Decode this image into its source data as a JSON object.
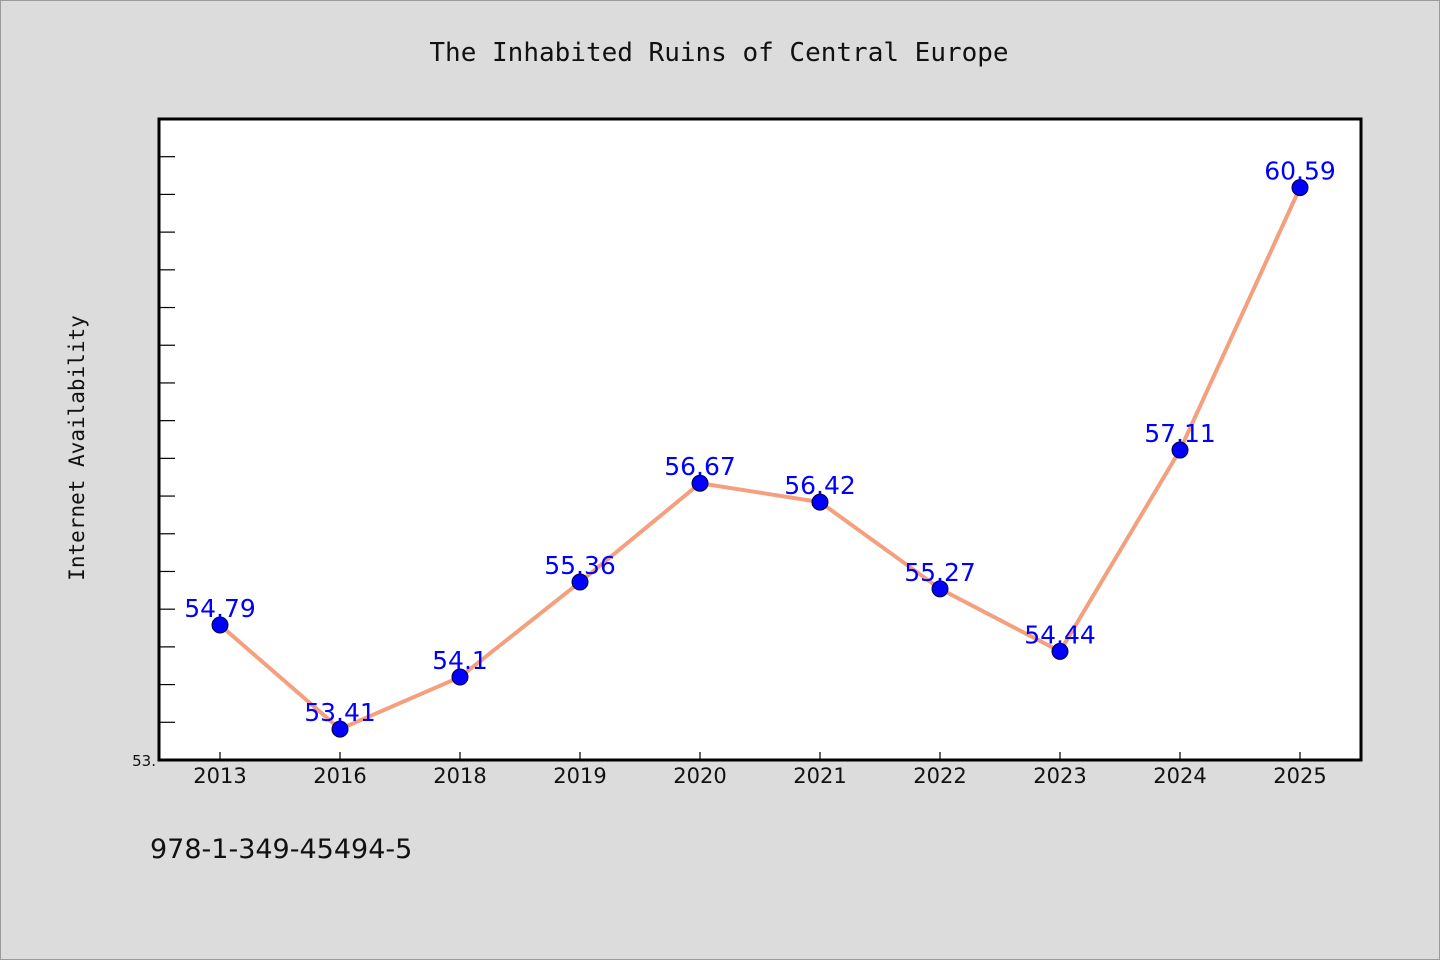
{
  "chart_data": {
    "type": "line",
    "title": "The Inhabited Ruins of Central Europe",
    "ylabel": "Internet Availability",
    "xlabel": "",
    "categories": [
      "2013",
      "2016",
      "2018",
      "2019",
      "2020",
      "2021",
      "2022",
      "2023",
      "2024",
      "2025"
    ],
    "values": [
      54.79,
      53.41,
      54.1,
      55.36,
      56.67,
      56.42,
      55.27,
      54.44,
      57.11,
      60.59
    ],
    "value_labels": [
      "54.79",
      "53.41",
      "54.1",
      "55.36",
      "56.67",
      "56.42",
      "55.27",
      "54.44",
      "57.11",
      "60.59"
    ],
    "ylim": [
      53.0,
      61.5
    ],
    "y_tick_label": "53.",
    "grid": false,
    "line_color": "#f4a07e",
    "marker_color": "#0000ff",
    "label_color": "#0000ff"
  },
  "footnote": "978-1-349-45494-5"
}
